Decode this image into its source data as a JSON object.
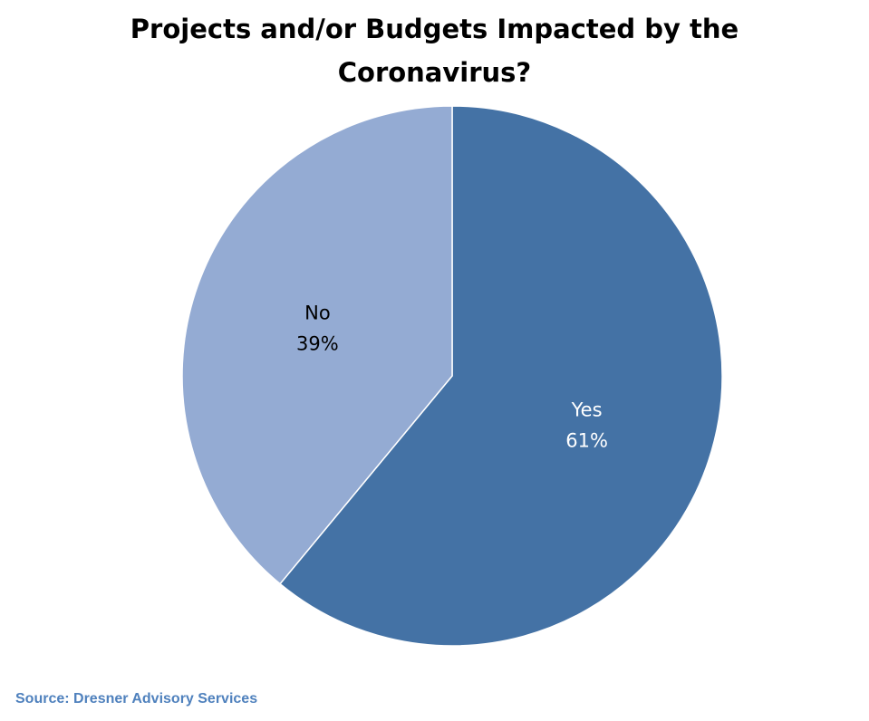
{
  "chart_data": {
    "type": "pie",
    "title_lines": [
      "Projects and/or Budgets Impacted by the",
      "Coronavirus?"
    ],
    "slices": [
      {
        "label": "Yes",
        "value": 61,
        "value_label": "61%",
        "color": "#4472a5",
        "label_color": "#ffffff"
      },
      {
        "label": "No",
        "value": 39,
        "value_label": "39%",
        "color": "#94abd3",
        "label_color": "#000000"
      }
    ],
    "start_angle": "12 o'clock",
    "direction": "clockwise",
    "legend": "none",
    "data_labels": "inside"
  },
  "source": "Source: Dresner Advisory Services"
}
